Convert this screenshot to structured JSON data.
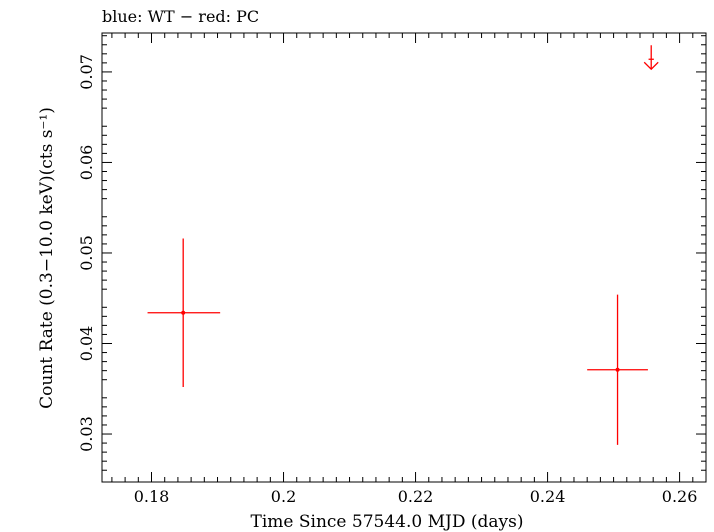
{
  "chart_data": {
    "type": "scatter",
    "title": "blue: WT − red: PC",
    "xlabel": "Time Since 57544.0 MJD (days)",
    "ylabel": "Count Rate (0.3−10.0 keV)(cts s⁻¹)",
    "xlim": [
      0.1725,
      0.264
    ],
    "ylim": [
      0.0247,
      0.0743
    ],
    "xticks": [
      0.18,
      0.2,
      0.22,
      0.24,
      0.26
    ],
    "xtick_labels": [
      "0.18",
      "0.2",
      "0.22",
      "0.24",
      "0.26"
    ],
    "yticks": [
      0.03,
      0.04,
      0.05,
      0.06,
      0.07
    ],
    "ytick_labels": [
      "0.03",
      "0.04",
      "0.05",
      "0.06",
      "0.07"
    ],
    "grid": false,
    "series": [
      {
        "name": "PC",
        "color": "#ff0000",
        "points": [
          {
            "x": 0.1848,
            "y": 0.0434,
            "xlo": 0.1794,
            "xhi": 0.1904,
            "ylo": 0.0352,
            "yhi": 0.0516
          },
          {
            "x": 0.2506,
            "y": 0.0371,
            "xlo": 0.246,
            "xhi": 0.2552,
            "ylo": 0.0288,
            "yhi": 0.0454
          }
        ],
        "upper_limits": [
          {
            "x": 0.2557,
            "y": 0.0714,
            "xlo": 0.2553,
            "xhi": 0.2561
          }
        ]
      }
    ]
  }
}
